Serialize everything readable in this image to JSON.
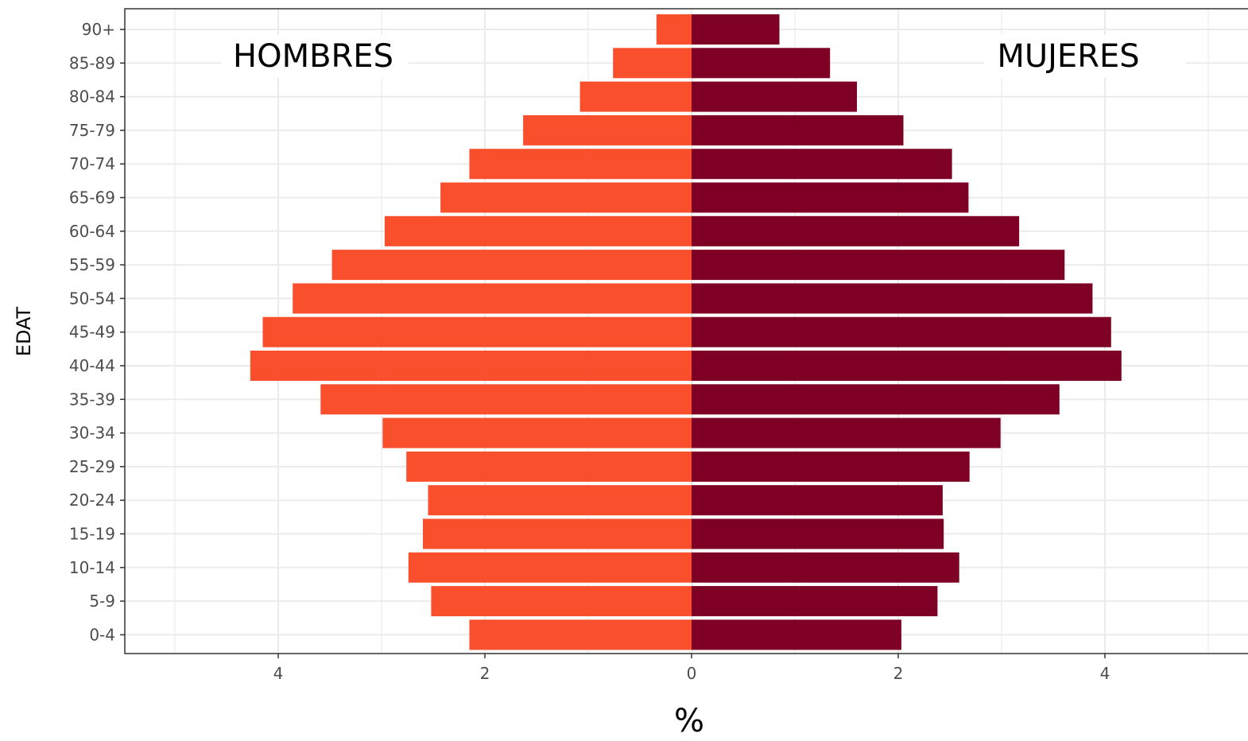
{
  "chart_data": {
    "type": "bar",
    "orientation": "horizontal-diverging",
    "title": "",
    "xlabel": "%",
    "ylabel": "EDAT",
    "xlim": [
      -5.5,
      5.5
    ],
    "x_ticks": [
      {
        "value": -4,
        "label": "4"
      },
      {
        "value": -2,
        "label": "2"
      },
      {
        "value": 0,
        "label": "0"
      },
      {
        "value": 2,
        "label": "2"
      },
      {
        "value": 4,
        "label": "4"
      }
    ],
    "categories": [
      "0-4",
      "5-9",
      "10-14",
      "15-19",
      "20-24",
      "25-29",
      "30-34",
      "35-39",
      "40-44",
      "45-49",
      "50-54",
      "55-59",
      "60-64",
      "65-69",
      "70-74",
      "75-79",
      "80-84",
      "85-89",
      "90+"
    ],
    "series": [
      {
        "name": "HOMBRES",
        "side": "left",
        "values": [
          2.15,
          2.52,
          2.74,
          2.6,
          2.55,
          2.76,
          2.99,
          3.59,
          4.27,
          4.15,
          3.86,
          3.48,
          2.97,
          2.43,
          2.15,
          1.63,
          1.08,
          0.76,
          0.34
        ]
      },
      {
        "name": "MUJERES",
        "side": "right",
        "values": [
          2.03,
          2.38,
          2.59,
          2.44,
          2.43,
          2.69,
          2.99,
          3.56,
          4.16,
          4.06,
          3.88,
          3.61,
          3.17,
          2.68,
          2.52,
          2.05,
          1.6,
          1.34,
          0.85
        ]
      }
    ],
    "annotations": [
      {
        "text": "HOMBRES",
        "side": "left"
      },
      {
        "text": "MUJERES",
        "side": "right"
      }
    ],
    "grid": true,
    "legend": "none",
    "colors": {
      "HOMBRES": "#FA4F2D",
      "MUJERES": "#7E0025",
      "grid": "#EBEBEB",
      "axis": "#333333",
      "tick_label": "#4D4D4D"
    }
  }
}
